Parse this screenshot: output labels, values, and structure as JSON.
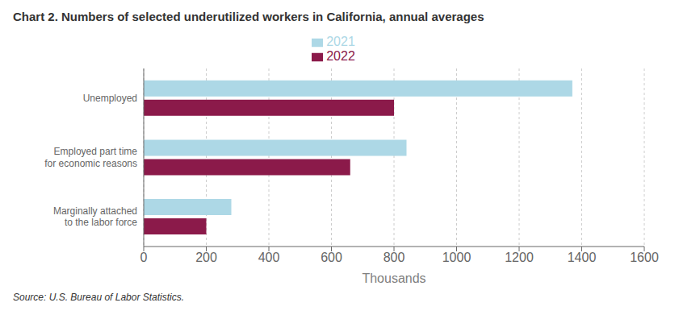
{
  "chart_data": {
    "type": "bar",
    "orientation": "horizontal",
    "title": "Chart 2. Numbers of selected underutilized workers in California, annual averages",
    "categories": [
      "Marginally attached\nto the labor force",
      "Employed part time\nfor economic reasons",
      "Unemployed"
    ],
    "series": [
      {
        "name": "2021",
        "color": "#add8e6",
        "values": [
          280,
          840,
          1370
        ]
      },
      {
        "name": "2022",
        "color": "#8b1a4a",
        "values": [
          200,
          660,
          800
        ]
      }
    ],
    "xlim": [
      0,
      1600
    ],
    "xticks": [
      0,
      200,
      400,
      600,
      800,
      1000,
      1200,
      1400,
      1600
    ],
    "xlabel": "Thousands",
    "grid": true,
    "legend": "top",
    "annotations": [
      "Source: U.S. Bureau of Labor Statistics."
    ]
  }
}
